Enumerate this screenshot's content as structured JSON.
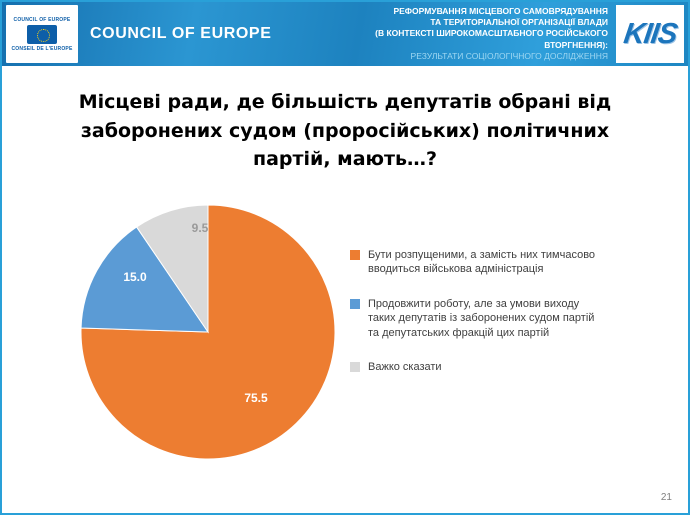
{
  "header": {
    "coe_logo": {
      "line_top": "COUNCIL OF EUROPE",
      "line_bottom": "CONSEIL DE L'EUROPE"
    },
    "org_name": "COUNCIL OF EUROPE",
    "title_lines": [
      "РЕФОРМУВАННЯ МІСЦЕВОГО САМОВРЯДУВАННЯ",
      "ТА ТЕРИТОРІАЛЬНОЇ ОРГАНІЗАЦІЇ ВЛАДИ",
      "(В КОНТЕКСТІ ШИРОКОМАСШТАБНОГО РОСІЙСЬКОГО",
      "ВТОРГНЕННЯ):"
    ],
    "subtitle": "РЕЗУЛЬТАТИ СОЦІОЛОГІЧНОГО ДОСЛІДЖЕННЯ",
    "kiis_logo_text": "KIIS"
  },
  "slide": {
    "title": "Місцеві ради, де більшість депутатів обрані від заборонених судом (проросійських) політичних партій, мають…?",
    "page_number": "21"
  },
  "chart_data": {
    "type": "pie",
    "title": "Місцеві ради, де більшість депутатів обрані від заборонених судом (проросійських) політичних партій, мають…?",
    "start_angle_deg": 0,
    "direction": "clockwise",
    "legend_position": "right",
    "slices": [
      {
        "label": "Бути розпущеними, а замість них тимчасово вводиться військова адміністрація",
        "value": 75.5,
        "data_label": "75.5",
        "color": "#ED7D31"
      },
      {
        "label": "Продовжити роботу, але за умови виходу таких депутатів із заборонених судом партій та депутатських фракцій цих партій",
        "value": 15.0,
        "data_label": "15.0",
        "color": "#5B9BD5"
      },
      {
        "label": "Важко сказати",
        "value": 9.5,
        "data_label": "9.5",
        "color": "#D9D9D9"
      }
    ]
  }
}
